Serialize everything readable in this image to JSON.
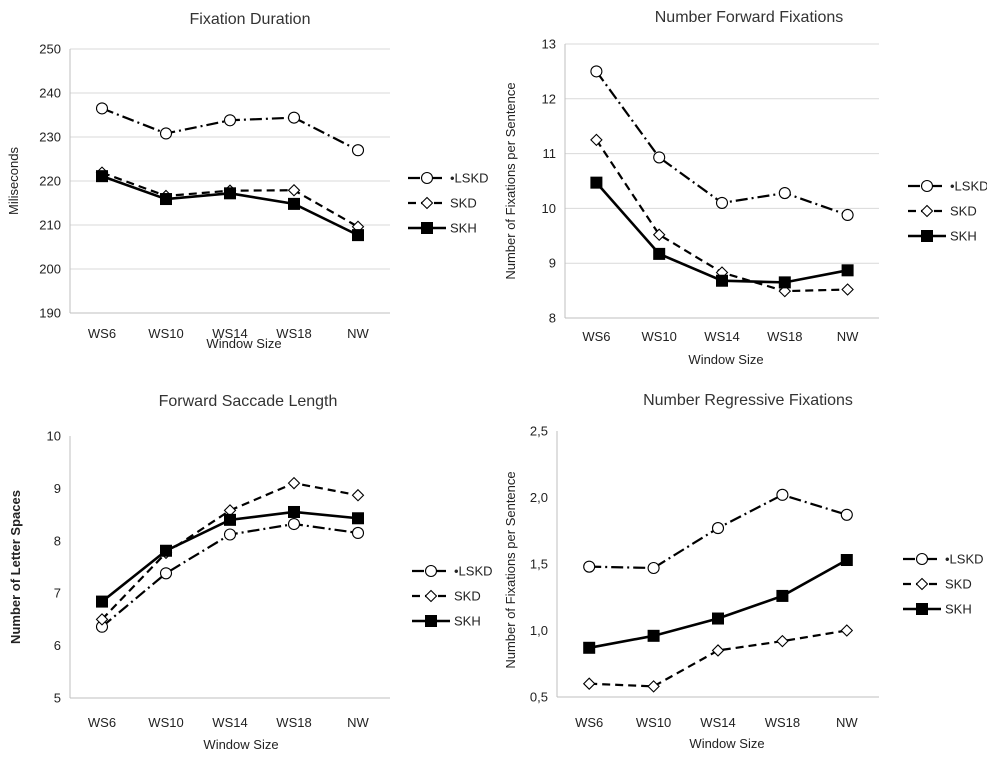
{
  "chart_data": [
    {
      "type": "line",
      "title": "Fixation Duration",
      "xlabel": "Window Size",
      "ylabel": "Miliseconds",
      "categories": [
        "WS6",
        "WS10",
        "WS14",
        "WS18",
        "NW"
      ],
      "ylim": [
        190,
        250
      ],
      "yticks": [
        "190",
        "200",
        "210",
        "220",
        "230",
        "240",
        "250"
      ],
      "grid": true,
      "legend_position": "right",
      "series": [
        {
          "name": "•LSKD",
          "values": [
            236.5,
            230.8,
            233.8,
            234.4,
            227
          ]
        },
        {
          "name": "SKD",
          "values": [
            221.9,
            216.6,
            217.8,
            217.9,
            209.6
          ]
        },
        {
          "name": "SKH",
          "values": [
            221.1,
            215.9,
            217.2,
            214.8,
            207.7
          ]
        }
      ]
    },
    {
      "type": "line",
      "title": "Number Forward Fixations",
      "xlabel": "Window Size",
      "ylabel": "Number of Fixations per Sentence",
      "categories": [
        "WS6",
        "WS10",
        "WS14",
        "WS18",
        "NW"
      ],
      "ylim": [
        8,
        13
      ],
      "yticks": [
        "8",
        "9",
        "10",
        "11",
        "12",
        "13"
      ],
      "grid": true,
      "legend_position": "right",
      "series": [
        {
          "name": "•LSKD",
          "values": [
            12.5,
            10.93,
            10.1,
            10.28,
            9.88
          ]
        },
        {
          "name": "SKD",
          "values": [
            11.25,
            9.52,
            8.83,
            8.49,
            8.52
          ]
        },
        {
          "name": "SKH",
          "values": [
            10.47,
            9.17,
            8.68,
            8.65,
            8.87
          ]
        }
      ]
    },
    {
      "type": "line",
      "title": "Forward Saccade Length",
      "xlabel": "Window Size",
      "ylabel": "Number of Letter Spaces",
      "categories": [
        "WS6",
        "WS10",
        "WS14",
        "WS18",
        "NW"
      ],
      "ylim": [
        5,
        10
      ],
      "yticks": [
        "5",
        "6",
        "7",
        "8",
        "9",
        "10"
      ],
      "grid": false,
      "legend_position": "right",
      "series": [
        {
          "name": "•LSKD",
          "values": [
            6.36,
            7.38,
            8.12,
            8.32,
            8.15
          ]
        },
        {
          "name": "SKD",
          "values": [
            6.5,
            7.77,
            8.58,
            9.1,
            8.87
          ]
        },
        {
          "name": "SKH",
          "values": [
            6.84,
            7.81,
            8.4,
            8.55,
            8.43
          ]
        }
      ]
    },
    {
      "type": "line",
      "title": "Number Regressive Fixations",
      "xlabel": "Window Size",
      "ylabel": "Number of Fixations per Sentence",
      "categories": [
        "WS6",
        "WS10",
        "WS14",
        "WS18",
        "NW"
      ],
      "ylim": [
        0.5,
        2.5
      ],
      "yticks": [
        "0,5",
        "1,0",
        "1,5",
        "2,0",
        "2,5"
      ],
      "grid": false,
      "legend_position": "right",
      "series": [
        {
          "name": "•LSKD",
          "values": [
            1.48,
            1.47,
            1.77,
            2.02,
            1.87
          ]
        },
        {
          "name": "SKD",
          "values": [
            0.6,
            0.58,
            0.85,
            0.92,
            1.0
          ]
        },
        {
          "name": "SKH",
          "values": [
            0.87,
            0.96,
            1.09,
            1.26,
            1.53
          ]
        }
      ]
    }
  ],
  "colors": {
    "line": "#000000",
    "grid": "#d9d9d9",
    "axis": "#bfbfbf",
    "legend_text": "#222222"
  }
}
